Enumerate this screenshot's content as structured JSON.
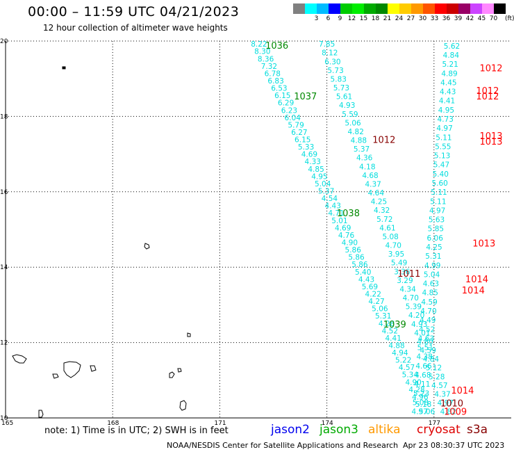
{
  "header": {
    "title": "00:00 – 11:59 UTC 04/21/2023",
    "subtitle": "12 hour collection of altimeter wave heights"
  },
  "scale": {
    "unit": "(ft)",
    "bins": [
      {
        "label": "",
        "color": "#808080"
      },
      {
        "label": "3",
        "color": "#00ffff"
      },
      {
        "label": "6",
        "color": "#00bbff"
      },
      {
        "label": "9",
        "color": "#0000ff"
      },
      {
        "label": "12",
        "color": "#00cc00"
      },
      {
        "label": "15",
        "color": "#00ee00"
      },
      {
        "label": "18",
        "color": "#00aa00"
      },
      {
        "label": "21",
        "color": "#008800"
      },
      {
        "label": "24",
        "color": "#ffff00"
      },
      {
        "label": "27",
        "color": "#ffcc00"
      },
      {
        "label": "30",
        "color": "#ff9900"
      },
      {
        "label": "33",
        "color": "#ff5500"
      },
      {
        "label": "36",
        "color": "#ff0000"
      },
      {
        "label": "39",
        "color": "#cc0000"
      },
      {
        "label": "42",
        "color": "#990066"
      },
      {
        "label": "45",
        "color": "#cc44ff"
      },
      {
        "label": "70",
        "color": "#ff88ff"
      },
      {
        "label": "",
        "color": "#000000"
      }
    ]
  },
  "map": {
    "lon_range": [
      165,
      179
    ],
    "lat_range": [
      10,
      20
    ],
    "lon_ticks": [
      "165",
      "168",
      "171",
      "174",
      "177"
    ],
    "lat_ticks": [
      "20",
      "18",
      "16",
      "14",
      "12",
      "10"
    ],
    "swh_color": "#00dddd",
    "tracks": [
      {
        "name": "track-1",
        "lon_start": 172.1,
        "lat_start": 19.85,
        "lon_end": 176.8,
        "lat_end": 10.1,
        "values": [
          "8.22",
          "8.30",
          "8.36",
          "7.32",
          "6.78",
          "6.83",
          "6.53",
          "6.15",
          "6.29",
          "6.23",
          "6.04",
          "5.79",
          "6.27",
          "6.15",
          "5.33",
          "4.69",
          "4.33",
          "4.85",
          "4.95",
          "5.04",
          "5.37",
          "4.54",
          "4.43",
          "4.71",
          "5.01",
          "4.69",
          "4.76",
          "4.90",
          "5.86",
          "5.86",
          "5.86",
          "5.40",
          "4.43",
          "5.69",
          "4.22",
          "4.27",
          "5.06",
          "5.31",
          "4.28",
          "4.52",
          "4.41",
          "4.88",
          "4.94",
          "5.22",
          "4.57",
          "5.34",
          "4.90",
          "4.28",
          "4.96",
          "5.18",
          "5.06"
        ]
      },
      {
        "name": "track-2",
        "lon_start": 174.0,
        "lat_start": 19.85,
        "lon_end": 177.4,
        "lat_end": 10.1,
        "values": [
          "7.85",
          "8.12",
          "6.30",
          "5.73",
          "5.83",
          "5.73",
          "5.61",
          "4.93",
          "5.59",
          "5.06",
          "4.82",
          "4.88",
          "5.37",
          "4.36",
          "4.18",
          "4.68",
          "4.37",
          "4.64",
          "4.25",
          "4.32",
          "5.72",
          "4.61",
          "5.08",
          "4.70",
          "3.95",
          "5.49",
          "3.36",
          "3.29",
          "4.34",
          "4.70",
          "5.39",
          "4.20",
          "4.93",
          "4.01",
          "4.80",
          "4.59",
          "4.84",
          "5.12",
          "5.28",
          "4.57",
          "4.37",
          "4.97",
          "4.82"
        ]
      },
      {
        "name": "track-3",
        "lon_start": 177.5,
        "lat_start": 19.8,
        "lon_end": 176.6,
        "lat_end": 10.1,
        "values": [
          "5.62",
          "4.84",
          "5.21",
          "4.89",
          "4.45",
          "4.43",
          "4.41",
          "4.95",
          "4.73",
          "4.97",
          "5.11",
          "5.55",
          "5.13",
          "5.47",
          "5.40",
          "5.60",
          "5.11",
          "5.11",
          "4.97",
          "5.63",
          "5.85",
          "6.06",
          "4.25",
          "5.31",
          "4.99",
          "5.04",
          "4.63",
          "4.85",
          "4.59",
          "4.70",
          "4.49",
          "4.52",
          "4.63",
          "5.51",
          "4.38",
          "4.66",
          "4.68",
          "4.11",
          "5.23",
          "5.08",
          "4.97"
        ]
      }
    ],
    "pressure_labels": [
      {
        "text": "1036",
        "lon": 172.6,
        "lat": 19.8,
        "color": "#008800"
      },
      {
        "text": "1037",
        "lon": 173.4,
        "lat": 18.45,
        "color": "#008800"
      },
      {
        "text": "1038",
        "lon": 174.6,
        "lat": 15.35,
        "color": "#008800"
      },
      {
        "text": "1039",
        "lon": 175.9,
        "lat": 12.4,
        "color": "#008800"
      },
      {
        "text": "1012",
        "lon": 175.6,
        "lat": 17.3,
        "color": "#880000"
      },
      {
        "text": "1011",
        "lon": 176.3,
        "lat": 13.75,
        "color": "#880000"
      },
      {
        "text": "1012",
        "lon": 178.6,
        "lat": 19.2,
        "color": "#ff0000"
      },
      {
        "text": "1012",
        "lon": 178.5,
        "lat": 18.6,
        "color": "#ff0000"
      },
      {
        "text": "1012",
        "lon": 178.5,
        "lat": 18.45,
        "color": "#ff0000"
      },
      {
        "text": "1013",
        "lon": 178.6,
        "lat": 17.4,
        "color": "#ff0000"
      },
      {
        "text": "1013",
        "lon": 178.6,
        "lat": 17.25,
        "color": "#ff0000"
      },
      {
        "text": "1013",
        "lon": 178.4,
        "lat": 14.55,
        "color": "#ff0000"
      },
      {
        "text": "1014",
        "lon": 178.2,
        "lat": 13.6,
        "color": "#ff0000"
      },
      {
        "text": "1014",
        "lon": 178.1,
        "lat": 13.3,
        "color": "#ff0000"
      },
      {
        "text": "1014",
        "lon": 177.8,
        "lat": 10.65,
        "color": "#ff0000"
      },
      {
        "text": "1010",
        "lon": 177.5,
        "lat": 10.3,
        "color": "#880000"
      },
      {
        "text": "1009",
        "lon": 177.6,
        "lat": 10.08,
        "color": "#ff0000"
      }
    ]
  },
  "footer": {
    "note": "note: 1) Time is in UTC; 2) SWH is in feet",
    "satellites": [
      {
        "name": "jason2",
        "color": "#0000ee"
      },
      {
        "name": "jason3",
        "color": "#00aa00"
      },
      {
        "name": "altika",
        "color": "#ff9900"
      },
      {
        "name": "cryosat",
        "color": "#dd0000"
      },
      {
        "name": "s3a",
        "color": "#880000"
      }
    ],
    "credit": "NOAA/NESDIS Center for Satellite Applications and Research",
    "timestamp": "Apr 23 08:30:37 UTC 2023"
  }
}
